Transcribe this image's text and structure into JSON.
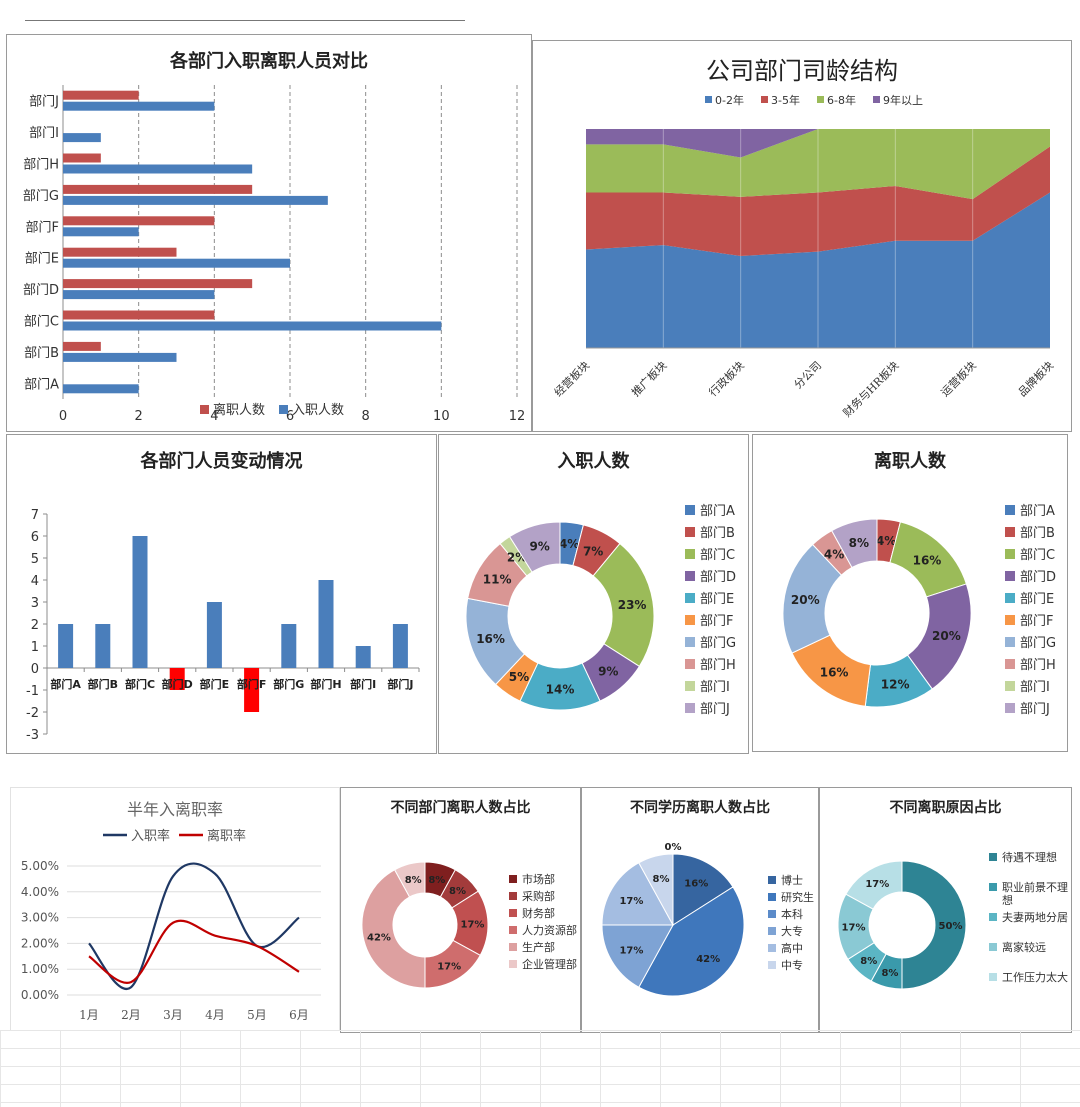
{
  "colors": {
    "blue": "#4a7ebb",
    "red": "#c0504d",
    "green": "#9bbb59",
    "purple": "#8064a2",
    "teal": "#4bacc6",
    "orange": "#f79646",
    "ltblue": "#95b3d7",
    "pink": "#d99694",
    "ltgreen": "#c3d69b",
    "lavender": "#b3a2c7",
    "brightred": "#ff0000",
    "navy": "#1f3864",
    "linered": "#c00000"
  },
  "chart_data": [
    {
      "id": "hbar",
      "type": "bar",
      "orientation": "horizontal",
      "title": "各部门入职离职人员对比",
      "categories": [
        "部门A",
        "部门B",
        "部门C",
        "部门D",
        "部门E",
        "部门F",
        "部门G",
        "部门H",
        "部门I",
        "部门J"
      ],
      "series": [
        {
          "name": "离职人数",
          "values": [
            0,
            1,
            4,
            5,
            3,
            4,
            5,
            1,
            0,
            2
          ]
        },
        {
          "name": "入职人数",
          "values": [
            2,
            3,
            10,
            4,
            6,
            2,
            7,
            5,
            1,
            4
          ]
        }
      ],
      "xlim": [
        0,
        12
      ],
      "xticks": [
        "0",
        "2",
        "4",
        "6",
        "8",
        "10",
        "12"
      ],
      "legend": "bottom"
    },
    {
      "id": "area",
      "type": "area",
      "stacked": "percent",
      "title": "公司部门司龄结构",
      "categories": [
        "经营板块",
        "推广板块",
        "行政板块",
        "分公司",
        "财务与HR板块",
        "运营板块",
        "品牌板块"
      ],
      "series": [
        {
          "name": "0-2年",
          "values": [
            45,
            47,
            42,
            44,
            49,
            49,
            71
          ]
        },
        {
          "name": "3-5年",
          "values": [
            26,
            24,
            27,
            27,
            25,
            19,
            21
          ]
        },
        {
          "name": "6-8年",
          "values": [
            22,
            22,
            18,
            29,
            26,
            32,
            8
          ]
        },
        {
          "name": "9年以上",
          "values": [
            7,
            7,
            13,
            0,
            0,
            0,
            0
          ]
        }
      ],
      "ylim": [
        0,
        100
      ],
      "legend": "top"
    },
    {
      "id": "vbar",
      "type": "bar",
      "title": "各部门人员变动情况",
      "categories": [
        "部门A",
        "部门B",
        "部门C",
        "部门D",
        "部门E",
        "部门F",
        "部门G",
        "部门H",
        "部门I",
        "部门J"
      ],
      "values": [
        2,
        2,
        6,
        -1,
        3,
        -2,
        2,
        4,
        1,
        2
      ],
      "ylim": [
        -3,
        7
      ],
      "yticks": [
        "-3",
        "-2",
        "-1",
        "0",
        "1",
        "2",
        "3",
        "4",
        "5",
        "6",
        "7"
      ]
    },
    {
      "id": "donut1",
      "type": "pie",
      "title": "入职人数",
      "labels": [
        "部门A",
        "部门B",
        "部门C",
        "部门D",
        "部门E",
        "部门F",
        "部门G",
        "部门H",
        "部门I",
        "部门J"
      ],
      "values": [
        4,
        7,
        23,
        9,
        14,
        5,
        16,
        11,
        2,
        9
      ],
      "value_labels": [
        "4%",
        "7%",
        "23%",
        "9%",
        "14%",
        "5%",
        "16%",
        "11%",
        "2%",
        "9%"
      ]
    },
    {
      "id": "donut2",
      "type": "pie",
      "title": "离职人数",
      "labels": [
        "部门A",
        "部门B",
        "部门C",
        "部门D",
        "部门E",
        "部门F",
        "部门G",
        "部门H",
        "部门I",
        "部门J"
      ],
      "values": [
        0,
        4,
        16,
        20,
        12,
        16,
        20,
        4,
        0,
        8
      ],
      "value_labels": [
        "",
        "4%",
        "16%",
        "20%",
        "12%",
        "16%",
        "20%",
        "4%",
        "",
        "8%"
      ]
    },
    {
      "id": "line",
      "type": "line",
      "title": "半年入离职率",
      "categories": [
        "1月",
        "2月",
        "3月",
        "4月",
        "5月",
        "6月"
      ],
      "series": [
        {
          "name": "入职率",
          "values": [
            2.0,
            0.3,
            4.6,
            4.7,
            1.9,
            3.0
          ]
        },
        {
          "name": "离职率",
          "values": [
            1.5,
            0.5,
            2.8,
            2.3,
            1.9,
            0.9
          ]
        }
      ],
      "ylim": [
        0,
        5
      ],
      "yticks": [
        "0.00%",
        "1.00%",
        "2.00%",
        "3.00%",
        "4.00%",
        "5.00%"
      ],
      "legend": "top"
    },
    {
      "id": "donut3",
      "type": "pie",
      "title": "不同部门离职人数占比",
      "labels": [
        "市场部",
        "采购部",
        "财务部",
        "人力资源部",
        "生产部",
        "企业管理部"
      ],
      "values": [
        8,
        8,
        17,
        17,
        42,
        8
      ],
      "value_labels": [
        "8%",
        "8%",
        "17%",
        "17%",
        "42%",
        "8%"
      ]
    },
    {
      "id": "pie4",
      "type": "pie",
      "title": "不同学历离职人数占比",
      "labels": [
        "博士",
        "研究生",
        "本科",
        "大专",
        "高中",
        "中专"
      ],
      "values": [
        16,
        42,
        0,
        17,
        17,
        8
      ],
      "value_labels": [
        "16%",
        "42%",
        "0%",
        "17%",
        "17%",
        "8%"
      ]
    },
    {
      "id": "donut5",
      "type": "pie",
      "title": "不同离职原因占比",
      "labels": [
        "待遇不理想",
        "职业前景不理想",
        "夫妻两地分居",
        "离家较远",
        "工作压力太大"
      ],
      "values": [
        50,
        8,
        8,
        17,
        17
      ],
      "value_labels": [
        "50%",
        "8%",
        "8%",
        "17%",
        "17%"
      ]
    }
  ]
}
